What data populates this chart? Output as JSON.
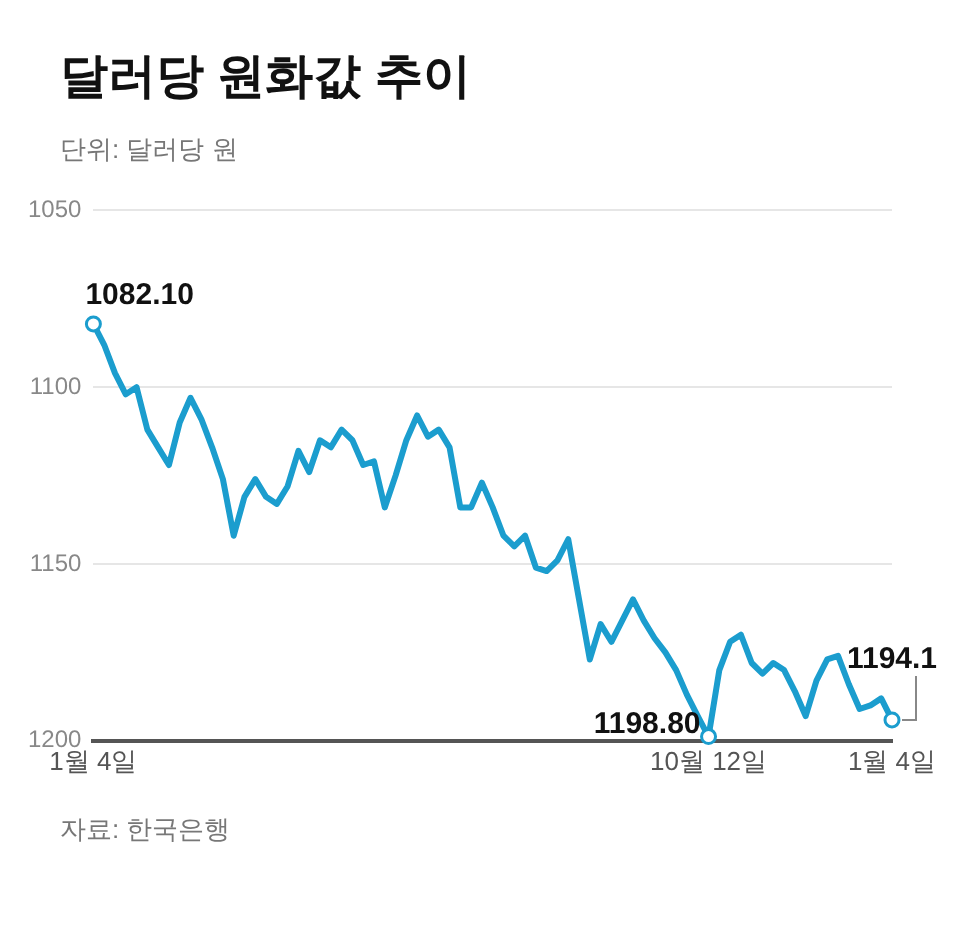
{
  "chart_data": {
    "type": "line",
    "title": "달러당 원화값 추이",
    "subtitle": "단위: 달러당 원",
    "categories": [
      "1월 4일",
      null,
      null,
      null,
      null,
      null,
      null,
      null,
      null,
      null,
      null,
      null,
      null,
      null,
      null,
      null,
      null,
      null,
      null,
      null,
      null,
      null,
      null,
      null,
      null,
      null,
      null,
      null,
      null,
      null,
      null,
      null,
      null,
      null,
      null,
      null,
      null,
      null,
      null,
      null,
      null,
      null,
      null,
      null,
      null,
      null,
      null,
      null,
      null,
      null,
      null,
      null,
      null,
      null,
      null,
      null,
      null,
      "10월 12일",
      null,
      null,
      null,
      null,
      null,
      null,
      null,
      null,
      null,
      null,
      null,
      null,
      null,
      null,
      null,
      null,
      "1월 4일"
    ],
    "series": [
      {
        "color": "#1b9dce",
        "values": [
          1082.1,
          1088,
          1096,
          1102,
          1100,
          1112,
          1117,
          1122,
          1110,
          1103,
          1109,
          1117,
          1126,
          1142,
          1131,
          1126,
          1131,
          1133,
          1128,
          1118,
          1124,
          1115,
          1117,
          1112,
          1115,
          1122,
          1121,
          1134,
          1125,
          1115,
          1108,
          1114,
          1112,
          1117,
          1134,
          1134,
          1127,
          1134,
          1142,
          1145,
          1142,
          1151,
          1152,
          1149,
          1143,
          1160,
          1177,
          1167,
          1172,
          1166,
          1160,
          1166,
          1171,
          1175,
          1180,
          1187,
          1193,
          1198.8,
          1180,
          1172,
          1170,
          1178,
          1181,
          1178,
          1180,
          1186,
          1193,
          1183,
          1177,
          1176,
          1184,
          1191,
          1190,
          1188,
          1194.1
        ],
        "value_labels": [
          "1082.10",
          null,
          null,
          null,
          null,
          null,
          null,
          null,
          null,
          null,
          null,
          null,
          null,
          null,
          null,
          null,
          null,
          null,
          null,
          null,
          null,
          null,
          null,
          null,
          null,
          null,
          null,
          null,
          null,
          null,
          null,
          null,
          null,
          null,
          null,
          null,
          null,
          null,
          null,
          null,
          null,
          null,
          null,
          null,
          null,
          null,
          null,
          null,
          null,
          null,
          null,
          null,
          null,
          null,
          null,
          null,
          null,
          "1198.80",
          null,
          null,
          null,
          null,
          null,
          null,
          null,
          null,
          null,
          null,
          null,
          null,
          null,
          null,
          null,
          null,
          "1194.1"
        ]
      }
    ],
    "ylim": [
      1200,
      1050
    ],
    "yticks": [
      1050,
      1100,
      1150,
      1200
    ],
    "grid": "y",
    "legend": false,
    "marker": "none",
    "line_style": "solid",
    "annotations": [
      "자료: 한국은행"
    ]
  }
}
